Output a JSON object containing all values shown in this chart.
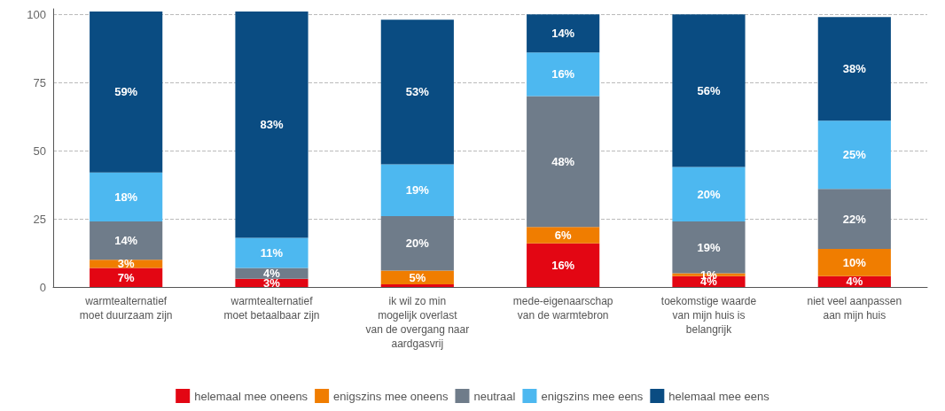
{
  "chart_data": {
    "type": "bar",
    "stacked": true,
    "categories": [
      "warmtealternatief moet duurzaam zijn",
      "warmtealternatief moet betaalbaar zijn",
      "ik wil zo min mogelijk overlast van de overgang naar aardgasvrij",
      "mede-eigenaarschap van de warmtebron",
      "toekomstige waarde van mijn huis is belangrijk",
      "niet veel aanpassen aan mijn huis"
    ],
    "series": [
      {
        "name": "helemaal mee oneens",
        "color": "#e30613",
        "values": [
          7,
          3,
          1,
          16,
          4,
          4
        ],
        "value_labels": [
          "7%",
          "3%",
          null,
          "16%",
          "4%",
          "4%"
        ]
      },
      {
        "name": "enigszins mee oneens",
        "color": "#f07d00",
        "values": [
          3,
          0,
          5,
          6,
          1,
          10
        ],
        "value_labels": [
          "3%",
          null,
          "5%",
          "6%",
          "1%",
          "10%"
        ]
      },
      {
        "name": "neutraal",
        "color": "#6f7c8a",
        "values": [
          14,
          4,
          20,
          48,
          19,
          22
        ],
        "value_labels": [
          "14%",
          "4%",
          "20%",
          "48%",
          "19%",
          "22%"
        ]
      },
      {
        "name": "enigszins mee eens",
        "color": "#4db8f0",
        "values": [
          18,
          11,
          19,
          16,
          20,
          25
        ],
        "value_labels": [
          "18%",
          "11%",
          "19%",
          "16%",
          "20%",
          "25%"
        ]
      },
      {
        "name": "helemaal mee eens",
        "color": "#0a4c82",
        "values": [
          59,
          83,
          53,
          14,
          56,
          38
        ],
        "value_labels": [
          "59%",
          "83%",
          "53%",
          "14%",
          "56%",
          "38%"
        ]
      }
    ],
    "ylim": [
      0,
      102
    ],
    "yticks": [
      0,
      25,
      50,
      75,
      100
    ],
    "grid": "y",
    "legend": "bottom"
  }
}
